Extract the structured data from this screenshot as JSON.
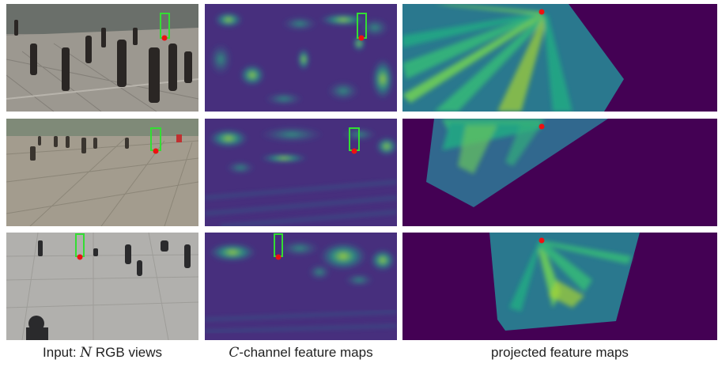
{
  "captions": {
    "input_prefix": "Input: ",
    "input_var": "N",
    "input_suffix": " RGB views",
    "feature_var": "C",
    "feature_suffix": "-channel feature maps",
    "projected": "projected feature maps"
  },
  "colors": {
    "background_dark": "#440154",
    "feature_low": "#472f7d",
    "feature_mid": "#21918c",
    "feature_high": "#bddf26",
    "bbox": "#33dd33",
    "point": "#ee1111"
  },
  "rows": [
    {
      "view": "camera view 1"
    },
    {
      "view": "camera view 2"
    },
    {
      "view": "camera view 3"
    }
  ]
}
